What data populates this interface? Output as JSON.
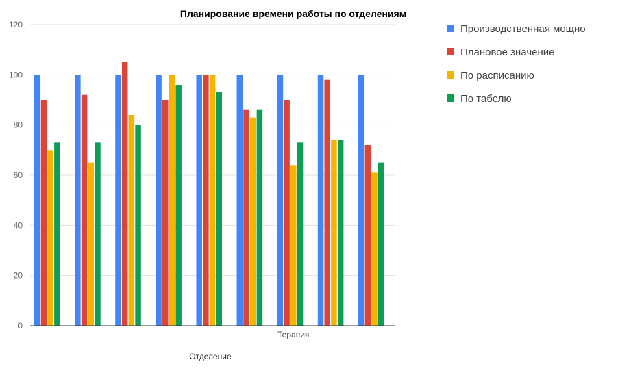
{
  "chart_data": {
    "type": "bar",
    "title": "Планирование времени работы по отделениям",
    "xlabel": "Отделение",
    "ylabel": "",
    "ylim": [
      0,
      120
    ],
    "yticks": [
      0,
      20,
      40,
      60,
      80,
      100,
      120
    ],
    "grid": true,
    "legend_position": "right",
    "categories": [
      "",
      "",
      "",
      "",
      "",
      "",
      "Терапия",
      "",
      ""
    ],
    "series": [
      {
        "name": "Производственная мощно",
        "color": "#4285F4",
        "values": [
          100,
          100,
          100,
          100,
          100,
          100,
          100,
          100,
          100
        ]
      },
      {
        "name": "Плановое значение",
        "color": "#DB4437",
        "values": [
          90,
          92,
          105,
          90,
          100,
          86,
          90,
          98,
          72
        ]
      },
      {
        "name": "По расписанию",
        "color": "#F4B400",
        "values": [
          70,
          65,
          84,
          100,
          100,
          83,
          64,
          74,
          61
        ]
      },
      {
        "name": "По табелю",
        "color": "#0F9D58",
        "values": [
          73,
          73,
          80,
          96,
          93,
          86,
          73,
          74,
          65
        ]
      }
    ]
  }
}
